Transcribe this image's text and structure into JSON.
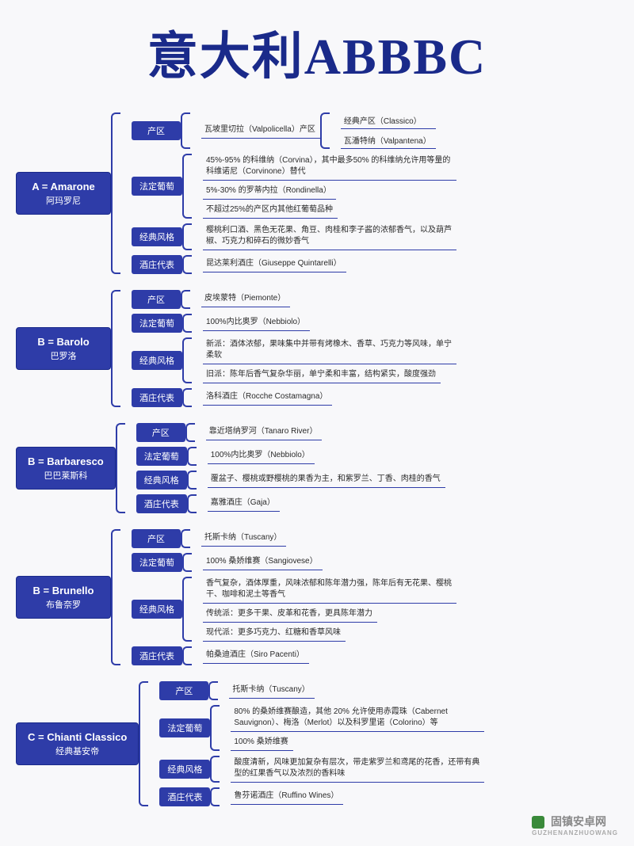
{
  "colors": {
    "primary": "#2e3ca8",
    "title": "#1a2a8a",
    "bg": "#f8f8fa",
    "text": "#2a2a2a"
  },
  "title": "意大利ABBBC",
  "title_fontsize": 64,
  "label_fontsize": 13,
  "category_fontsize": 11,
  "detail_fontsize": 10,
  "wines": [
    {
      "code": "A = Amarone",
      "name_cn": "阿玛罗尼",
      "categories": [
        {
          "label": "产区",
          "details": [
            {
              "text": "瓦坡里切拉（Valpolicella）产区",
              "subs": [
                "经典产区（Classico）",
                "瓦潘特纳（Valpantena）"
              ]
            }
          ]
        },
        {
          "label": "法定葡萄",
          "details": [
            {
              "text": "45%-95% 的科维纳（Corvina），其中最多50% 的科维纳允许用等量的科维诺尼（Corvinone）替代"
            },
            {
              "text": "5%-30% 的罗蒂内拉（Rondinella）"
            },
            {
              "text": "不超过25%的产区内其他红葡萄品种"
            }
          ]
        },
        {
          "label": "经典风格",
          "details": [
            {
              "text": "樱桃利口酒、黑色无花果、角豆、肉桂和李子酱的浓郁香气，以及葫芦椒、巧克力和碎石的微妙香气"
            }
          ]
        },
        {
          "label": "酒庄代表",
          "details": [
            {
              "text": "昆达莱利酒庄（Giuseppe Quintarelli）"
            }
          ]
        }
      ]
    },
    {
      "code": "B = Barolo",
      "name_cn": "巴罗洛",
      "categories": [
        {
          "label": "产区",
          "details": [
            {
              "text": "皮埃蒙特（Piemonte）"
            }
          ]
        },
        {
          "label": "法定葡萄",
          "details": [
            {
              "text": "100%内比奥罗（Nebbiolo）"
            }
          ]
        },
        {
          "label": "经典风格",
          "details": [
            {
              "text": "新派：酒体浓郁，果味集中并带有烤橡木、香草、巧克力等风味，单宁柔软"
            },
            {
              "text": "旧派：陈年后香气复杂华丽，单宁柔和丰富，结构紧实，酸度强劲"
            }
          ]
        },
        {
          "label": "酒庄代表",
          "details": [
            {
              "text": "洛科酒庄（Rocche Costamagna）"
            }
          ]
        }
      ]
    },
    {
      "code": "B = Barbaresco",
      "name_cn": "巴巴莱斯科",
      "categories": [
        {
          "label": "产区",
          "details": [
            {
              "text": "靠近塔纳罗河（Tanaro River）"
            }
          ]
        },
        {
          "label": "法定葡萄",
          "details": [
            {
              "text": "100%内比奥罗（Nebbiolo）"
            }
          ]
        },
        {
          "label": "经典风格",
          "details": [
            {
              "text": "覆盆子、樱桃或野樱桃的果香为主，和紫罗兰、丁香、肉桂的香气"
            }
          ]
        },
        {
          "label": "酒庄代表",
          "details": [
            {
              "text": "嘉雅酒庄（Gaja）"
            }
          ]
        }
      ]
    },
    {
      "code": "B = Brunello",
      "name_cn": "布鲁奈罗",
      "categories": [
        {
          "label": "产区",
          "details": [
            {
              "text": "托斯卡纳（Tuscany）"
            }
          ]
        },
        {
          "label": "法定葡萄",
          "details": [
            {
              "text": "100% 桑娇维赛（Sangiovese）"
            }
          ]
        },
        {
          "label": "经典风格",
          "details": [
            {
              "text": "香气复杂，酒体厚重，风味浓郁和陈年潜力强，陈年后有无花果、樱桃干、咖啡和泥土等香气"
            },
            {
              "text": "传统派：更多干果、皮革和花香，更具陈年潜力"
            },
            {
              "text": "现代派：更多巧克力、红糖和香草风味"
            }
          ]
        },
        {
          "label": "酒庄代表",
          "details": [
            {
              "text": "帕桑迪酒庄（Siro Pacenti）"
            }
          ]
        }
      ]
    },
    {
      "code": "C = Chianti Classico",
      "name_cn": "经典基安帝",
      "categories": [
        {
          "label": "产区",
          "details": [
            {
              "text": "托斯卡纳（Tuscany）"
            }
          ]
        },
        {
          "label": "法定葡萄",
          "details": [
            {
              "text": "80% 的桑娇维赛酿造，其他 20% 允许使用赤霞珠（Cabernet Sauvignon）、梅洛（Merlot）以及科罗里诺（Colorino）等"
            },
            {
              "text": "100% 桑娇维赛"
            }
          ]
        },
        {
          "label": "经典风格",
          "details": [
            {
              "text": "酸度清新，风味更加复杂有层次，带走紫罗兰和鸢尾的花香，还带有典型的红果香气以及浓烈的香料味"
            }
          ]
        },
        {
          "label": "酒庄代表",
          "details": [
            {
              "text": "鲁芬诺酒庄（Ruffino Wines）"
            }
          ]
        }
      ]
    }
  ],
  "watermark": {
    "text": "固镇安卓网",
    "sub": "GUZHENANZHUOWANG"
  }
}
